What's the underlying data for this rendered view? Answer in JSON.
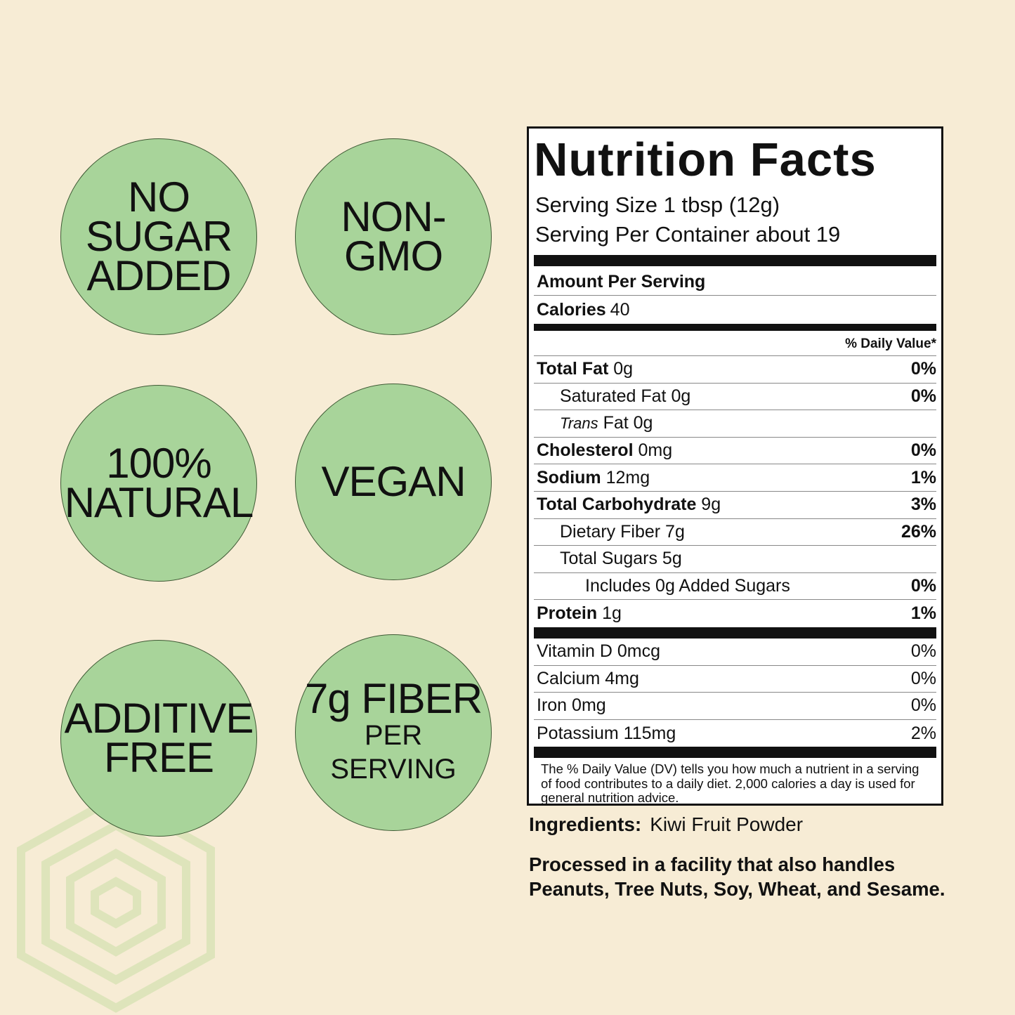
{
  "badges": [
    {
      "lines": [
        "NO",
        "SUGAR",
        "ADDED"
      ]
    },
    {
      "lines": [
        "NON-",
        "GMO"
      ]
    },
    {
      "lines": [
        "100%",
        "NATURAL"
      ]
    },
    {
      "lines": [
        "VEGAN"
      ]
    },
    {
      "lines": [
        "ADDITIVE",
        "FREE"
      ]
    },
    {
      "lines": [
        "7g FIBER",
        "PER",
        "SERVING"
      ]
    }
  ],
  "nutrition": {
    "title": "Nutrition Facts",
    "serving_size": "Serving Size 1 tbsp (12g)",
    "servings": "Serving Per Container about 19",
    "amount_header": "Amount Per Serving",
    "calories_label": "Calories",
    "calories_value": "40",
    "dv_header": "% Daily Value*",
    "rows": [
      {
        "name": "Total Fat",
        "amount": "0g",
        "dv": "0%"
      },
      {
        "name": "Saturated Fat",
        "amount": "0g",
        "dv": "0%"
      },
      {
        "name_italic": "Trans",
        "name": "Fat",
        "amount": "0g"
      },
      {
        "name": "Cholesterol",
        "amount": "0mg",
        "dv": "0%"
      },
      {
        "name": "Sodium",
        "amount": "12mg",
        "dv": "1%"
      },
      {
        "name": "Total Carbohydrate",
        "amount": "9g",
        "dv": "3%"
      },
      {
        "name": "Dietary Fiber",
        "amount": "7g",
        "dv": "26%"
      },
      {
        "name": "Total Sugars",
        "amount": "5g"
      },
      {
        "name": "Includes 0g Added Sugars",
        "dv": "0%"
      },
      {
        "name": "Protein",
        "amount": "1g",
        "dv": "1%"
      }
    ],
    "vitamins": [
      {
        "name": "Vitamin D",
        "amount": "0mcg",
        "dv": "0%"
      },
      {
        "name": "Calcium",
        "amount": "4mg",
        "dv": "0%"
      },
      {
        "name": "Iron",
        "amount": "0mg",
        "dv": "0%"
      },
      {
        "name": "Potassium",
        "amount": "115mg",
        "dv": "2%"
      }
    ],
    "footnote": "The % Daily Value (DV) tells you how much a nutrient in a serving of food contributes to a daily diet. 2,000 calories a day is used for general nutrition advice."
  },
  "ingredients": {
    "label": "Ingredients:",
    "value": "Kiwi Fruit Powder"
  },
  "allergens": "Processed in a facility that also handles Peanuts, Tree Nuts, Soy, Wheat, and Sesame."
}
